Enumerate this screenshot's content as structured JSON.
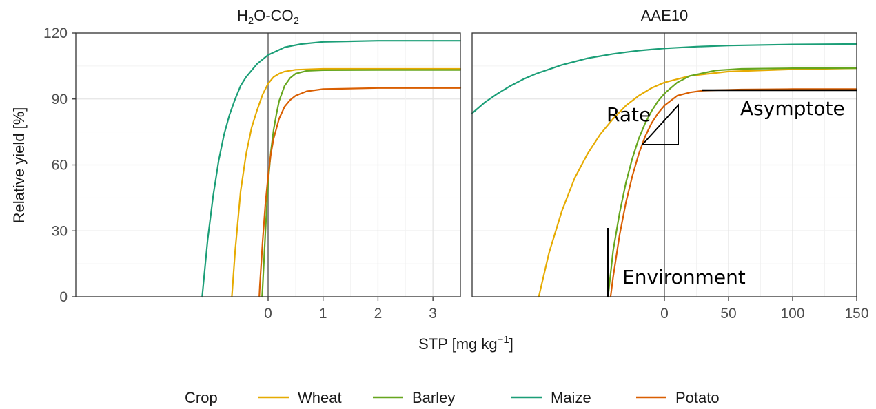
{
  "chart_data": {
    "type": "line",
    "ylabel": "Relative yield [%]",
    "xlabel": "STP [mg kg",
    "xlabel_sup": "−1",
    "xlabel_end": "]",
    "ylim": [
      0,
      120
    ],
    "y_ticks": [
      "0",
      "30",
      "60",
      "90",
      "120"
    ],
    "grid": true,
    "legend": {
      "position": "bottom",
      "title": "Crop"
    },
    "colors": {
      "Wheat": "#E6AB02",
      "Barley": "#66A61E",
      "Maize": "#1B9E77",
      "Potato": "#D95F02"
    },
    "panels": [
      {
        "title": "H",
        "title_sub1": "2",
        "title_mid": "O-CO",
        "title_sub2": "2",
        "xlim": [
          -3.5,
          3.5
        ],
        "x_ticks": [
          "0",
          "1",
          "2",
          "3"
        ],
        "x_tick_values": [
          0,
          1,
          2,
          3
        ],
        "series": [
          {
            "name": "Wheat",
            "x": [
              -0.66,
              -0.6,
              -0.5,
              -0.4,
              -0.3,
              -0.2,
              -0.1,
              0,
              0.1,
              0.2,
              0.3,
              0.5,
              1,
              2,
              3.5
            ],
            "y": [
              0,
              21,
              48,
              65,
              77,
              85,
              92,
              97,
              100,
              101.5,
              102.5,
              103.3,
              103.7,
              103.7,
              103.7
            ]
          },
          {
            "name": "Barley",
            "x": [
              -0.11,
              -0.1,
              -0.05,
              0,
              0.05,
              0.1,
              0.15,
              0.2,
              0.3,
              0.4,
              0.5,
              0.7,
              1,
              2,
              3.5
            ],
            "y": [
              0,
              4,
              29,
              52,
              66,
              76,
              83,
              89,
              96,
              99.5,
              101.5,
              102.8,
              103.1,
              103.2,
              103.2
            ]
          },
          {
            "name": "Maize",
            "x": [
              -1.2,
              -1.1,
              -1.0,
              -0.9,
              -0.8,
              -0.7,
              -0.6,
              -0.5,
              -0.4,
              -0.2,
              0,
              0.3,
              0.6,
              1,
              2,
              3.5
            ],
            "y": [
              0,
              26,
              46,
              62,
              74,
              83,
              90,
              96,
              100,
              106,
              110,
              113.5,
              115,
              116,
              116.5,
              116.5
            ]
          },
          {
            "name": "Potato",
            "x": [
              -0.16,
              -0.15,
              -0.1,
              -0.05,
              0,
              0.05,
              0.1,
              0.2,
              0.3,
              0.4,
              0.5,
              0.7,
              1,
              2,
              3.5
            ],
            "y": [
              0,
              5,
              25,
              42,
              55,
              65,
              72,
              81,
              86.5,
              89.5,
              91.5,
              93.5,
              94.5,
              95,
              95
            ]
          }
        ]
      },
      {
        "title": "AAE10",
        "xlim": [
          -150,
          150
        ],
        "x_ticks": [
          "0",
          "50",
          "100",
          "150"
        ],
        "x_tick_values": [
          0,
          50,
          100,
          150
        ],
        "series": [
          {
            "name": "Wheat",
            "x": [
              -98,
              -90,
              -80,
              -70,
              -60,
              -50,
              -40,
              -30,
              -20,
              -10,
              0,
              20,
              50,
              100,
              150
            ],
            "y": [
              0,
              20,
              39,
              54,
              65,
              74,
              81,
              87,
              91.5,
              95,
              97.5,
              100.5,
              102.5,
              103.5,
              104
            ]
          },
          {
            "name": "Barley",
            "x": [
              -44,
              -40,
              -35,
              -30,
              -25,
              -20,
              -15,
              -10,
              -5,
              0,
              10,
              20,
              40,
              60,
              100,
              150
            ],
            "y": [
              0,
              21,
              38,
              52,
              63,
              72,
              79,
              84.5,
              89,
              92.5,
              97.5,
              100.5,
              103,
              103.7,
              104,
              104
            ]
          },
          {
            "name": "Maize",
            "x": [
              -150,
              -140,
              -130,
              -120,
              -110,
              -100,
              -90,
              -80,
              -70,
              -60,
              -50,
              -40,
              -30,
              -20,
              -10,
              0,
              25,
              50,
              100,
              150
            ],
            "y": [
              83.5,
              88.5,
              92.5,
              96,
              99,
              101.5,
              103.5,
              105.5,
              107,
              108.5,
              109.5,
              110.5,
              111.3,
              112,
              112.5,
              113,
              113.8,
              114.3,
              114.8,
              115
            ]
          },
          {
            "name": "Potato",
            "x": [
              -42,
              -40,
              -35,
              -30,
              -25,
              -20,
              -15,
              -10,
              -5,
              0,
              10,
              20,
              30,
              40,
              60,
              80,
              100,
              150
            ],
            "y": [
              0,
              9,
              28,
              43,
              55,
              65,
              73,
              79,
              83.5,
              87,
              91.5,
              93,
              93.8,
              94,
              94.3,
              94.4,
              94.5,
              94.5
            ]
          }
        ],
        "annotations": [
          "Rate",
          "Asymptote",
          "Environment"
        ]
      }
    ]
  }
}
